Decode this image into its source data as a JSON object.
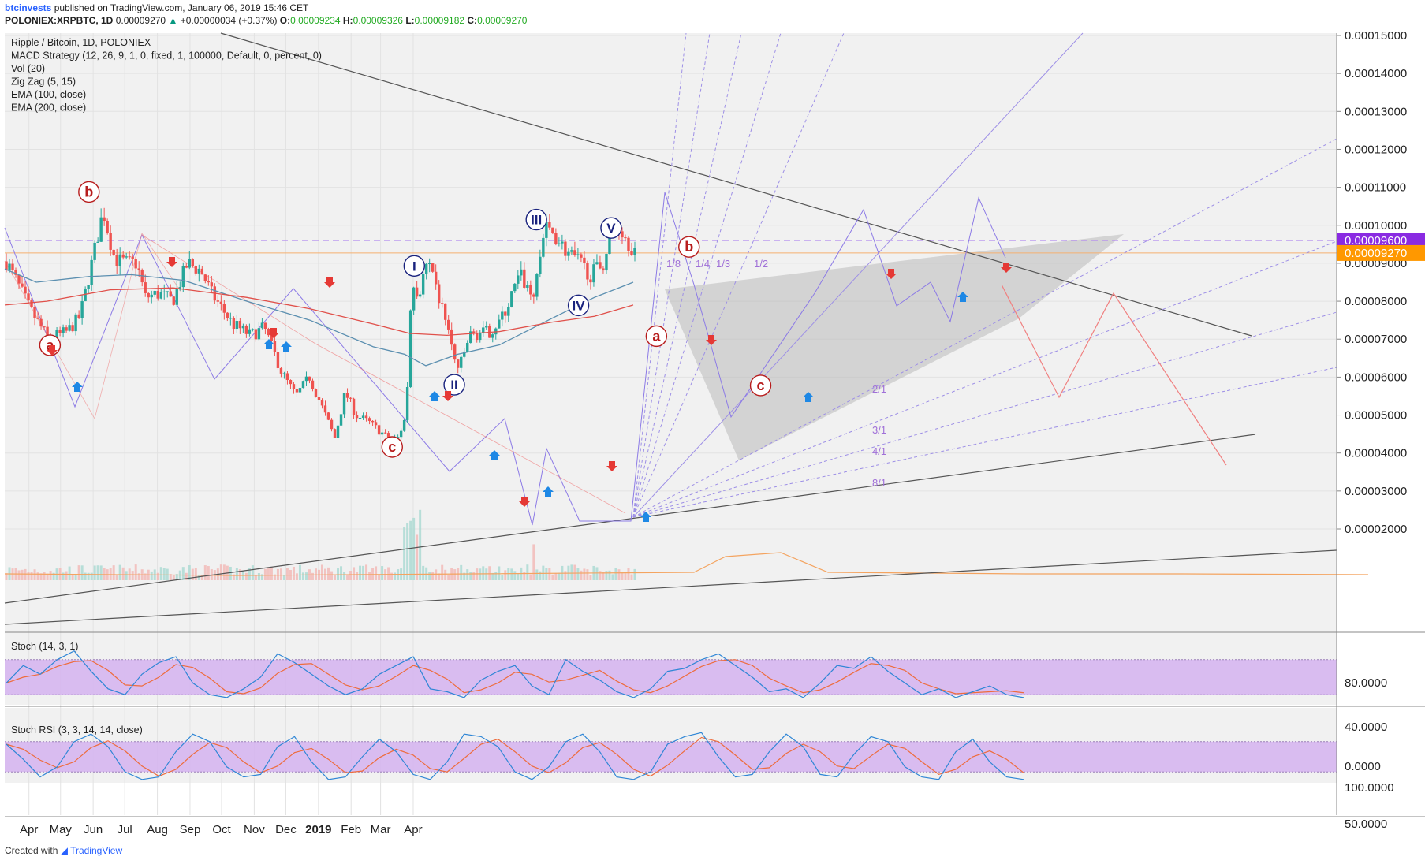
{
  "header": {
    "author": "btcinvests",
    "published": "published on TradingView.com, January 06, 2019 15:46 CET",
    "symbol": "POLONIEX:XRPBTC, 1D",
    "last": "0.00009270",
    "change": "+0.00000034 (+0.37%)",
    "o_label": "O:",
    "o": "0.00009234",
    "h_label": "H:",
    "h": "0.00009326",
    "l_label": "L:",
    "l": "0.00009182",
    "c_label": "C:",
    "c": "0.00009270"
  },
  "legend": [
    "Ripple / Bitcoin, 1D, POLONIEX",
    "MACD Strategy (12, 26, 9, 1, 0, fixed, 1, 100000, Default, 0, percent, 0)",
    "Vol (20)",
    "Zig Zag (5, 15)",
    "EMA (100, close)",
    "EMA (200, close)"
  ],
  "footer": {
    "created_with": "Created with",
    "brand": "TradingView"
  },
  "price_tags": {
    "dashed": "0.00009600",
    "last": "0.00009270"
  },
  "colors": {
    "up": "#26a69a",
    "down": "#ef5350",
    "ema100": "#5b8fb0",
    "ema200": "#e0504a",
    "zigzag": "#8c7ae6",
    "wave": "#e34b4b",
    "impulse": "#1a237e",
    "tag_purple": "#8a2be2",
    "tag_orange": "#ff9800",
    "band": "#d5b3f0",
    "stoch_k": "#2f86d6",
    "stoch_d": "#ee6c3c",
    "gann": "#9d8fe6"
  },
  "chart_data": [
    {
      "type": "candlestick",
      "title": "Ripple / Bitcoin, 1D, POLONIEX",
      "x_ticks": [
        "Apr",
        "May",
        "Jun",
        "Jul",
        "Aug",
        "Sep",
        "Oct",
        "Nov",
        "Dec",
        "2019",
        "Feb",
        "Mar",
        "Apr"
      ],
      "y_ticks": [
        "0.00015000",
        "0.00014000",
        "0.00013000",
        "0.00012000",
        "0.00011000",
        "0.00010000",
        "0.00009000",
        "0.00008000",
        "0.00007000",
        "0.00006000",
        "0.00005000",
        "0.00004000",
        "0.00003000",
        "0.00002000"
      ],
      "ylim": [
        1.25e-05,
        0.0001525
      ],
      "close_path": [
        [
          0,
          9.05e-05
        ],
        [
          10,
          8.5e-05
        ],
        [
          22,
          7.8e-05
        ],
        [
          40,
          7e-05
        ],
        [
          58,
          7.2e-05
        ],
        [
          70,
          7.6e-05
        ],
        [
          82,
          9.1e-05
        ],
        [
          92,
          0.000104
        ],
        [
          97,
          9.8e-05
        ],
        [
          103,
          9.1e-05
        ],
        [
          115,
          9e-05
        ],
        [
          124,
          9e-05
        ],
        [
          132,
          8.1e-05
        ],
        [
          145,
          8.2e-05
        ],
        [
          158,
          8e-05
        ],
        [
          172,
          9e-05
        ],
        [
          185,
          8.8e-05
        ],
        [
          195,
          8.2e-05
        ],
        [
          215,
          7.4e-05
        ],
        [
          232,
          7.1e-05
        ],
        [
          245,
          7.3e-05
        ],
        [
          262,
          6.1e-05
        ],
        [
          275,
          5.5e-05
        ],
        [
          288,
          6e-05
        ],
        [
          300,
          5.2e-05
        ],
        [
          312,
          4.4e-05
        ],
        [
          322,
          5.6e-05
        ],
        [
          332,
          5e-05
        ],
        [
          345,
          4.8e-05
        ],
        [
          358,
          4.5e-05
        ],
        [
          366,
          4.3e-05
        ],
        [
          372,
          4.4e-05
        ],
        [
          380,
          5e-05
        ],
        [
          385,
          8.5e-05
        ],
        [
          392,
          8.2e-05
        ],
        [
          400,
          9e-05
        ],
        [
          408,
          8.3e-05
        ],
        [
          418,
          7.5e-05
        ],
        [
          425,
          6.5e-05
        ],
        [
          430,
          6.2e-05
        ],
        [
          440,
          7.1e-05
        ],
        [
          460,
          7.2e-05
        ],
        [
          472,
          7.6e-05
        ],
        [
          488,
          8.7e-05
        ],
        [
          500,
          8.1e-05
        ],
        [
          512,
          9.9e-05
        ],
        [
          520,
          9.8e-05
        ],
        [
          532,
          9.3e-05
        ],
        [
          545,
          9e-05
        ],
        [
          555,
          8.7e-05
        ],
        [
          567,
          9e-05
        ],
        [
          575,
          9.8e-05
        ],
        [
          582,
          0.0001
        ],
        [
          590,
          9.6e-05
        ],
        [
          597,
          9.3e-05
        ]
      ],
      "ema100": [
        [
          0,
          8.85e-05
        ],
        [
          30,
          8.5e-05
        ],
        [
          80,
          8.65e-05
        ],
        [
          120,
          8.7e-05
        ],
        [
          170,
          8.55e-05
        ],
        [
          230,
          8e-05
        ],
        [
          290,
          7.5e-05
        ],
        [
          350,
          6.8e-05
        ],
        [
          380,
          6.6e-05
        ],
        [
          400,
          6.3e-05
        ],
        [
          430,
          6.6e-05
        ],
        [
          470,
          6.85e-05
        ],
        [
          520,
          7.55e-05
        ],
        [
          560,
          8.1e-05
        ],
        [
          597,
          8.5e-05
        ]
      ],
      "ema200": [
        [
          0,
          7.9e-05
        ],
        [
          40,
          8e-05
        ],
        [
          100,
          8.3e-05
        ],
        [
          160,
          8.35e-05
        ],
        [
          230,
          8.1e-05
        ],
        [
          290,
          7.8e-05
        ],
        [
          350,
          7.4e-05
        ],
        [
          385,
          7.15e-05
        ],
        [
          420,
          7.1e-05
        ],
        [
          470,
          7.2e-05
        ],
        [
          520,
          7.45e-05
        ],
        [
          560,
          7.6e-05
        ],
        [
          597,
          7.9e-05
        ]
      ],
      "horizontal_levels": [
        9.6e-05,
        9.27e-05
      ],
      "elliott_labels": [
        {
          "label": "a",
          "x": 43,
          "y": 6.84e-05,
          "kind": "correction"
        },
        {
          "label": "b",
          "x": 80,
          "y": 0.0001088,
          "kind": "correction"
        },
        {
          "label": "c",
          "x": 368,
          "y": 4.16e-05,
          "kind": "correction"
        },
        {
          "label": "I",
          "x": 389,
          "y": 8.93e-05,
          "kind": "impulse"
        },
        {
          "label": "II",
          "x": 427,
          "y": 5.8e-05,
          "kind": "impulse"
        },
        {
          "label": "III",
          "x": 505,
          "y": 0.0001015,
          "kind": "impulse"
        },
        {
          "label": "IV",
          "x": 545,
          "y": 7.89e-05,
          "kind": "impulse"
        },
        {
          "label": "V",
          "x": 576,
          "y": 9.93e-05,
          "kind": "impulse"
        },
        {
          "label": "a",
          "x": 619,
          "y": 7.08e-05,
          "kind": "correction"
        },
        {
          "label": "b",
          "x": 650,
          "y": 9.43e-05,
          "kind": "correction"
        },
        {
          "label": "c",
          "x": 718,
          "y": 5.78e-05,
          "kind": "correction"
        }
      ],
      "gann_labels": [
        "1/8",
        "1/4",
        "1/3",
        "1/2",
        "2/1",
        "3/1",
        "4/1",
        "8/1"
      ]
    },
    {
      "type": "line",
      "title": "Stoch (14, 3, 1)",
      "y_ticks": [
        "80.0000",
        "40.0000",
        "0.0000"
      ],
      "ylim": [
        0,
        100
      ],
      "band": [
        20,
        80
      ],
      "series": [
        {
          "values": [
            40,
            70,
            55,
            80,
            95,
            60,
            30,
            20,
            55,
            75,
            85,
            40,
            20,
            15,
            30,
            50,
            90,
            75,
            55,
            35,
            20,
            30,
            55,
            70,
            85,
            30,
            25,
            15,
            45,
            60,
            70,
            35,
            20,
            80,
            60,
            45,
            25,
            15,
            30,
            60,
            65,
            80,
            90,
            70,
            50,
            25,
            30,
            15,
            40,
            70,
            65,
            85,
            60,
            40,
            20,
            30,
            15,
            25,
            35,
            20,
            15
          ]
        }
      ]
    },
    {
      "type": "line",
      "title": "Stoch RSI (3, 3, 14, 14, close)",
      "y_ticks": [
        "100.0000",
        "50.0000",
        "0.0000"
      ],
      "ylim": [
        0,
        100
      ],
      "band": [
        20,
        80
      ],
      "series": [
        {
          "values": [
            75,
            45,
            10,
            30,
            80,
            95,
            70,
            20,
            5,
            10,
            60,
            95,
            80,
            30,
            10,
            15,
            70,
            90,
            40,
            5,
            10,
            50,
            85,
            60,
            15,
            5,
            40,
            95,
            90,
            70,
            20,
            5,
            30,
            80,
            95,
            60,
            10,
            5,
            20,
            75,
            90,
            100,
            50,
            10,
            15,
            60,
            95,
            70,
            15,
            10,
            55,
            90,
            80,
            30,
            10,
            5,
            60,
            85,
            40,
            10,
            5
          ]
        }
      ]
    }
  ]
}
